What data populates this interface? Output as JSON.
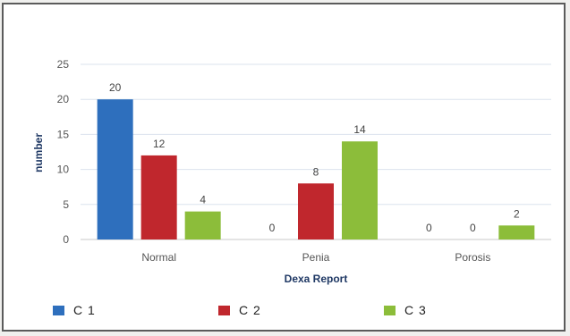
{
  "chart_data": {
    "type": "bar",
    "categories": [
      "Normal",
      "Penia",
      "Porosis"
    ],
    "series": [
      {
        "name": "C 1",
        "values": [
          20,
          0,
          0
        ],
        "color": "#2e6fbd"
      },
      {
        "name": "C 2",
        "values": [
          12,
          8,
          0
        ],
        "color": "#c0272d"
      },
      {
        "name": "C 3",
        "values": [
          4,
          14,
          2
        ],
        "color": "#8cbd3a"
      }
    ],
    "xlabel": "Dexa Report",
    "ylabel": "number",
    "ylim": [
      0,
      25
    ],
    "yticks": [
      0,
      5,
      10,
      15,
      20,
      25
    ],
    "grid": true,
    "legend_position": "bottom"
  }
}
